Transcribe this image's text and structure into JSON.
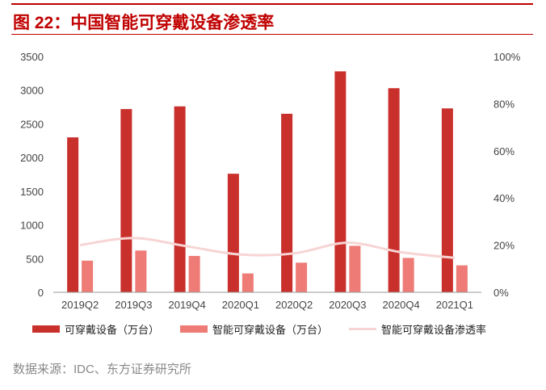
{
  "figure": {
    "title": "图 22：中国智能可穿戴设备渗透率",
    "source": "数据来源：IDC、东方证券研究所"
  },
  "chart_data": {
    "type": "bar",
    "categories": [
      "2019Q2",
      "2019Q3",
      "2019Q4",
      "2020Q1",
      "2020Q2",
      "2020Q3",
      "2020Q4",
      "2021Q1"
    ],
    "series": [
      {
        "name": "可穿戴设备（万台）",
        "type": "bar",
        "axis": "left",
        "color": "#c9302c",
        "values": [
          2300,
          2720,
          2760,
          1760,
          2650,
          3280,
          3030,
          2730
        ]
      },
      {
        "name": "智能可穿戴设备（万台）",
        "type": "bar",
        "axis": "left",
        "color": "#ee7b76",
        "values": [
          470,
          620,
          540,
          280,
          440,
          690,
          510,
          400
        ]
      },
      {
        "name": "智能可穿戴设备渗透率",
        "type": "line",
        "axis": "right",
        "color": "#f6d5d4",
        "values": [
          0.2,
          0.23,
          0.195,
          0.16,
          0.165,
          0.21,
          0.17,
          0.146
        ]
      }
    ],
    "left_axis": {
      "ylim": [
        0,
        3500
      ],
      "ticks": [
        "0",
        "500",
        "1000",
        "1500",
        "2000",
        "2500",
        "3000",
        "3500"
      ]
    },
    "right_axis": {
      "ylim": [
        0,
        1
      ],
      "ticks": [
        "0%",
        "20%",
        "40%",
        "60%",
        "80%",
        "100%"
      ]
    },
    "grid": false,
    "legend_position": "bottom"
  }
}
